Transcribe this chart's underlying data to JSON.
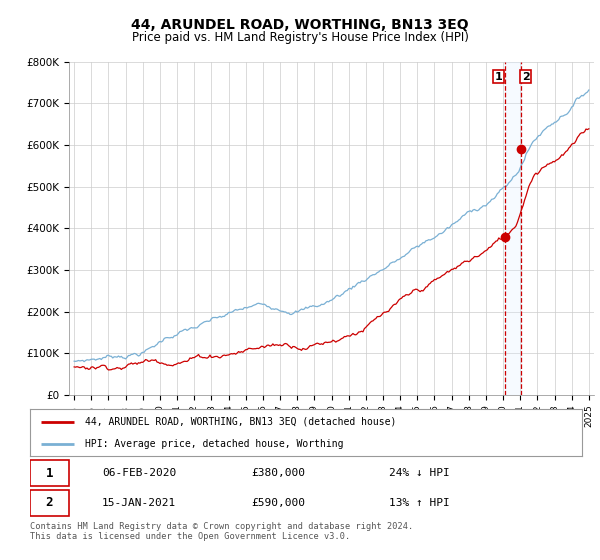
{
  "title": "44, ARUNDEL ROAD, WORTHING, BN13 3EQ",
  "subtitle": "Price paid vs. HM Land Registry's House Price Index (HPI)",
  "legend_label_red": "44, ARUNDEL ROAD, WORTHING, BN13 3EQ (detached house)",
  "legend_label_blue": "HPI: Average price, detached house, Worthing",
  "transaction1_date": "06-FEB-2020",
  "transaction1_price": "£380,000",
  "transaction1_pct": "24% ↓ HPI",
  "transaction2_date": "15-JAN-2021",
  "transaction2_price": "£590,000",
  "transaction2_pct": "13% ↑ HPI",
  "footer": "Contains HM Land Registry data © Crown copyright and database right 2024.\nThis data is licensed under the Open Government Licence v3.0.",
  "red_color": "#cc0000",
  "blue_color": "#7ab0d4",
  "shade_color": "#ddeeff",
  "dashed_color": "#cc0000",
  "ylim": [
    0,
    800000
  ],
  "yticks": [
    0,
    100000,
    200000,
    300000,
    400000,
    500000,
    600000,
    700000,
    800000
  ],
  "ytick_labels": [
    "£0",
    "£100K",
    "£200K",
    "£300K",
    "£400K",
    "£500K",
    "£600K",
    "£700K",
    "£800K"
  ],
  "t1_x": 2020.09,
  "t1_y": 380000,
  "t2_x": 2021.04,
  "t2_y": 590000,
  "xmin": 1995,
  "xmax": 2025
}
